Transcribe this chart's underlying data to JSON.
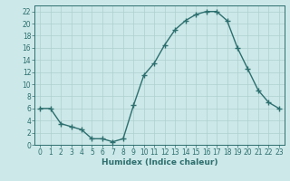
{
  "x": [
    0,
    1,
    2,
    3,
    4,
    5,
    6,
    7,
    8,
    9,
    10,
    11,
    12,
    13,
    14,
    15,
    16,
    17,
    18,
    19,
    20,
    21,
    22,
    23
  ],
  "y": [
    6,
    6,
    3.5,
    3,
    2.5,
    1,
    1,
    0.5,
    1,
    6.5,
    11.5,
    13.5,
    16.5,
    19,
    20.5,
    21.5,
    22,
    22,
    20.5,
    16,
    12.5,
    9,
    7,
    6
  ],
  "line_color": "#2d6e6e",
  "marker_color": "#2d6e6e",
  "bg_color": "#cce8e8",
  "grid_color": "#aed0d0",
  "xlabel": "Humidex (Indice chaleur)",
  "xlabel_fontsize": 6.5,
  "tick_fontsize": 5.5,
  "ylim": [
    0,
    23
  ],
  "xlim": [
    -0.5,
    23.5
  ],
  "yticks": [
    0,
    2,
    4,
    6,
    8,
    10,
    12,
    14,
    16,
    18,
    20,
    22
  ],
  "xticks": [
    0,
    1,
    2,
    3,
    4,
    5,
    6,
    7,
    8,
    9,
    10,
    11,
    12,
    13,
    14,
    15,
    16,
    17,
    18,
    19,
    20,
    21,
    22,
    23
  ]
}
